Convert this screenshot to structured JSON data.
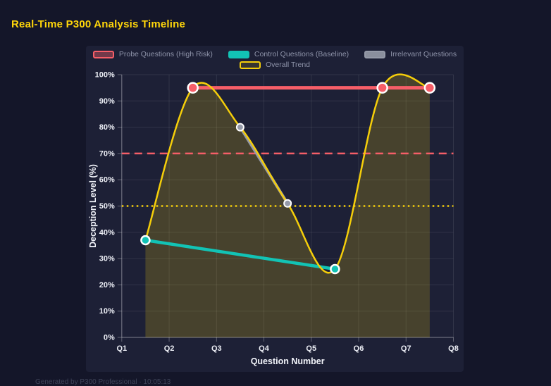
{
  "page": {
    "title": "Real-Time P300 Analysis Timeline",
    "title_color": "#ffd60a",
    "background": "#141629",
    "panel_background": "#1d2036",
    "footer": "Generated by P300 Professional · 10:05:13"
  },
  "chart_data": {
    "type": "line",
    "title": "Real-Time P300 Analysis Timeline",
    "xlabel": "Question Number",
    "ylabel": "Deception Level (%)",
    "x_ticks": [
      "Q1",
      "Q2",
      "Q3",
      "Q4",
      "Q5",
      "Q6",
      "Q7",
      "Q8"
    ],
    "x_range": [
      1,
      8
    ],
    "ylim": [
      0,
      100
    ],
    "y_tick_step": 10,
    "y_tick_suffix": "%",
    "grid": true,
    "legend_position": "top",
    "series": [
      {
        "name": "Probe Questions (High Risk)",
        "color": "#f65e68",
        "legend_fill": "rgba(246,94,104,0.4)",
        "line_width": 5,
        "point_radius": 7,
        "point_border": 2.5,
        "smooth": false,
        "points": [
          {
            "x": 2.5,
            "y": 95
          },
          {
            "x": 6.5,
            "y": 95
          },
          {
            "x": 7.5,
            "y": 95
          }
        ]
      },
      {
        "name": "Control Questions (Baseline)",
        "color": "#12c3b5",
        "legend_fill": "#12c3b5",
        "line_width": 4.5,
        "point_radius": 6,
        "point_border": 2.5,
        "smooth": false,
        "points": [
          {
            "x": 1.5,
            "y": 37
          },
          {
            "x": 5.5,
            "y": 26
          }
        ]
      },
      {
        "name": "Irrelevant Questions",
        "color": "#959aa8",
        "legend_fill": "#8a8f9d",
        "line_width": 4,
        "point_radius": 5,
        "point_border": 2,
        "smooth": false,
        "points": [
          {
            "x": 3.5,
            "y": 80
          },
          {
            "x": 4.5,
            "y": 51
          }
        ]
      },
      {
        "name": "Overall Trend",
        "color": "#f5ce0a",
        "legend_fill": "rgba(245,206,10,0.12)",
        "line_width": 2.5,
        "point_radius": 0,
        "point_border": 0,
        "smooth": true,
        "area_fill": "rgba(255,214,10,0.19)",
        "points": [
          {
            "x": 1.5,
            "y": 37
          },
          {
            "x": 2.5,
            "y": 95
          },
          {
            "x": 3.5,
            "y": 80
          },
          {
            "x": 4.5,
            "y": 51
          },
          {
            "x": 5.5,
            "y": 26
          },
          {
            "x": 6.5,
            "y": 95
          },
          {
            "x": 7.5,
            "y": 95
          }
        ]
      }
    ],
    "reference_lines": [
      {
        "y": 70,
        "color": "#f65e68",
        "style": "dashed"
      },
      {
        "y": 50,
        "color": "#f5ce0a",
        "style": "dotted"
      }
    ]
  }
}
